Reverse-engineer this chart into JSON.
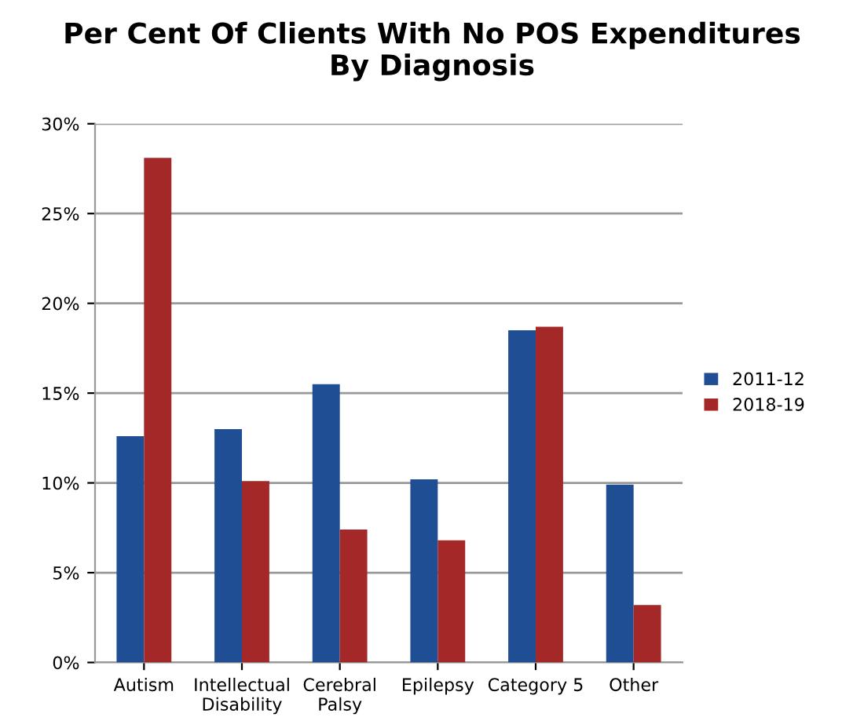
{
  "chart_data": {
    "type": "bar",
    "title": "Per Cent Of Clients With No POS Expenditures\nBy Diagnosis",
    "categories": [
      "Autism",
      "Intellectual\nDisability",
      "Cerebral\nPalsy",
      "Epilepsy",
      "Category 5",
      "Other"
    ],
    "series": [
      {
        "name": "2011-12",
        "color": "#1f4e94",
        "values": [
          12.6,
          13.0,
          15.5,
          10.2,
          18.5,
          9.9
        ]
      },
      {
        "name": "2018-19",
        "color": "#a52828",
        "values": [
          28.1,
          10.1,
          7.4,
          6.8,
          18.7,
          3.2
        ]
      }
    ],
    "ylim": [
      0,
      30
    ],
    "yticks": [
      {
        "value": 0,
        "label": "0%"
      },
      {
        "value": 5,
        "label": "5%"
      },
      {
        "value": 10,
        "label": "10%"
      },
      {
        "value": 15,
        "label": "15%"
      },
      {
        "value": 20,
        "label": "20%"
      },
      {
        "value": 25,
        "label": "25%"
      },
      {
        "value": 30,
        "label": "30%"
      }
    ],
    "grid": "y",
    "legend": "right"
  }
}
